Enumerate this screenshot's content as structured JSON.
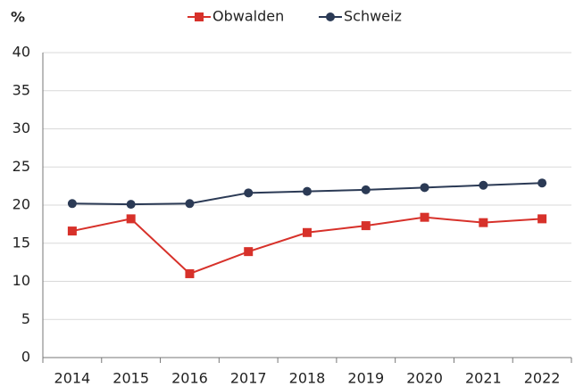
{
  "chart_data": {
    "type": "line",
    "y_label": "%",
    "categories": [
      "2014",
      "2015",
      "2016",
      "2017",
      "2018",
      "2019",
      "2020",
      "2021",
      "2022"
    ],
    "series": [
      {
        "name": "Obwalden",
        "color": "#d7312a",
        "marker": "square",
        "values": [
          16.6,
          18.2,
          11.0,
          13.9,
          16.4,
          17.3,
          18.4,
          17.7,
          18.2
        ]
      },
      {
        "name": "Schweiz",
        "color": "#2b3a55",
        "marker": "circle",
        "values": [
          20.2,
          20.1,
          20.2,
          21.6,
          21.8,
          22.0,
          22.3,
          22.6,
          22.9
        ]
      }
    ],
    "ylim": [
      0,
      40
    ],
    "yticks": [
      0,
      5,
      10,
      15,
      20,
      25,
      30,
      35,
      40
    ],
    "grid": true,
    "legend": "top"
  }
}
